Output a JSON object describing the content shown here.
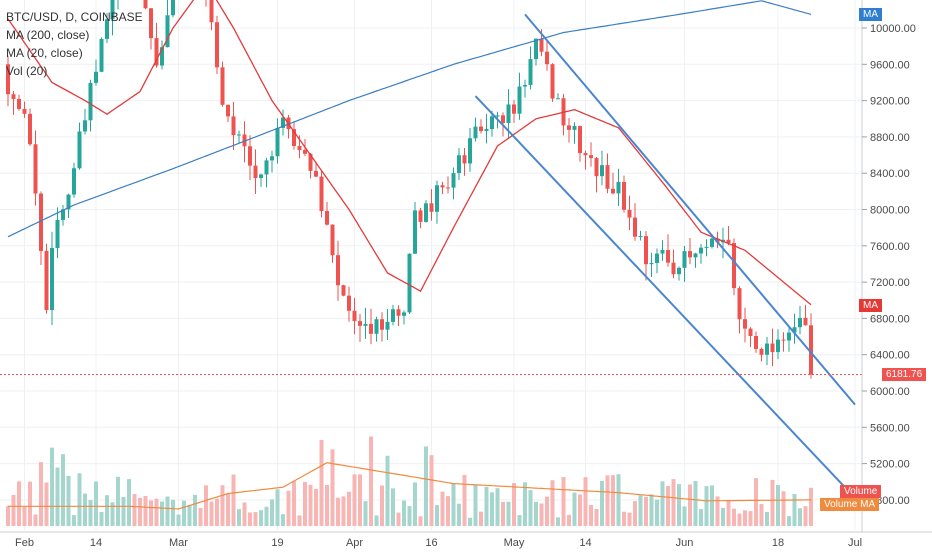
{
  "legend": {
    "symbol": "BTC/USD, D, COINBASE",
    "ma200": "MA (200, close)",
    "ma20": "MA (20, close)",
    "vol": "Vol (20)"
  },
  "tags": {
    "ma_top": "MA",
    "ma_mid": "MA",
    "last_price": "6181.76",
    "volume": "Volume",
    "volume_ma": "Volume MA"
  },
  "colors": {
    "up": "#26a69a",
    "down": "#ef5350",
    "vol_up": "#a5d6ce",
    "vol_down": "#f7b5b3",
    "ma20": "#e33b3b",
    "ma200": "#3a7fc4",
    "vol_ma": "#f08a3e",
    "channel": "#4a86d0",
    "ma_tag_blue": "#2f7fd0",
    "ma_tag_red": "#e53935",
    "price_tag": "#ef5350",
    "volume_ma_tag": "#f08a3e"
  },
  "chart_data": {
    "type": "candlestick",
    "symbol": "BTC/USD",
    "timeframe": "D",
    "exchange": "COINBASE",
    "x_ticks": [
      "Feb",
      "14",
      "Mar",
      "19",
      "Apr",
      "16",
      "May",
      "14",
      "Jun",
      "18",
      "Jul"
    ],
    "y_ticks": [
      10000,
      9600,
      9200,
      8800,
      8400,
      8000,
      7600,
      7200,
      6800,
      6400,
      6000,
      5600,
      5200,
      4800
    ],
    "y_range": [
      4600,
      10300
    ],
    "last_price": 6181.76,
    "close_path": [
      [
        "2018-01-29",
        9400
      ],
      [
        "2018-02-02",
        8800
      ],
      [
        "2018-02-05",
        6900
      ],
      [
        "2018-02-06",
        7700
      ],
      [
        "2018-02-09",
        8200
      ],
      [
        "2018-02-15",
        9800
      ],
      [
        "2018-02-20",
        11100
      ],
      [
        "2018-02-25",
        9600
      ],
      [
        "2018-03-04",
        11300
      ],
      [
        "2018-03-09",
        9200
      ],
      [
        "2018-03-15",
        8300
      ],
      [
        "2018-03-20",
        8900
      ],
      [
        "2018-03-25",
        8500
      ],
      [
        "2018-03-31",
        6950
      ],
      [
        "2018-04-06",
        6700
      ],
      [
        "2018-04-11",
        6900
      ],
      [
        "2018-04-13",
        7900
      ],
      [
        "2018-04-18",
        8200
      ],
      [
        "2018-04-25",
        8900
      ],
      [
        "2018-05-01",
        9100
      ],
      [
        "2018-05-05",
        9800
      ],
      [
        "2018-05-10",
        9000
      ],
      [
        "2018-05-15",
        8500
      ],
      [
        "2018-05-20",
        8200
      ],
      [
        "2018-05-25",
        7500
      ],
      [
        "2018-05-31",
        7400
      ],
      [
        "2018-06-05",
        7550
      ],
      [
        "2018-06-09",
        7600
      ],
      [
        "2018-06-11",
        6750
      ],
      [
        "2018-06-16",
        6450
      ],
      [
        "2018-06-20",
        6700
      ],
      [
        "2018-06-23",
        6700
      ],
      [
        "2018-06-24",
        6181.76
      ]
    ],
    "ma20_path": [
      [
        "2018-01-29",
        10100
      ],
      [
        "2018-02-06",
        9400
      ],
      [
        "2018-02-12",
        9200
      ],
      [
        "2018-02-16",
        9050
      ],
      [
        "2018-02-22",
        9300
      ],
      [
        "2018-02-28",
        10000
      ],
      [
        "2018-03-06",
        10500
      ],
      [
        "2018-03-11",
        10000
      ],
      [
        "2018-03-18",
        9200
      ],
      [
        "2018-03-25",
        8600
      ],
      [
        "2018-04-01",
        8000
      ],
      [
        "2018-04-08",
        7300
      ],
      [
        "2018-04-14",
        7100
      ],
      [
        "2018-04-20",
        7800
      ],
      [
        "2018-04-28",
        8700
      ],
      [
        "2018-05-05",
        9000
      ],
      [
        "2018-05-12",
        9100
      ],
      [
        "2018-05-20",
        8900
      ],
      [
        "2018-05-28",
        8300
      ],
      [
        "2018-06-04",
        7750
      ],
      [
        "2018-06-12",
        7550
      ],
      [
        "2018-06-18",
        7250
      ],
      [
        "2018-06-24",
        6950
      ]
    ],
    "ma200_path": [
      [
        "2018-01-29",
        7700
      ],
      [
        "2018-02-10",
        8050
      ],
      [
        "2018-02-28",
        8450
      ],
      [
        "2018-03-15",
        8800
      ],
      [
        "2018-04-01",
        9200
      ],
      [
        "2018-04-20",
        9600
      ],
      [
        "2018-05-10",
        9950
      ],
      [
        "2018-05-31",
        10150
      ],
      [
        "2018-06-15",
        10300
      ],
      [
        "2018-06-24",
        10150
      ]
    ],
    "channel_upper": [
      [
        "2018-05-03",
        10150
      ],
      [
        "2018-07-02",
        5850
      ]
    ],
    "channel_lower": [
      [
        "2018-04-24",
        9250
      ],
      [
        "2018-06-30",
        4950
      ]
    ],
    "volume_ma_path": [
      [
        "2018-01-29",
        4730
      ],
      [
        "2018-02-20",
        4730
      ],
      [
        "2018-03-01",
        4700
      ],
      [
        "2018-03-10",
        4870
      ],
      [
        "2018-03-20",
        4940
      ],
      [
        "2018-03-28",
        5210
      ],
      [
        "2018-04-08",
        5100
      ],
      [
        "2018-04-20",
        4980
      ],
      [
        "2018-05-05",
        4930
      ],
      [
        "2018-05-20",
        4880
      ],
      [
        "2018-06-05",
        4790
      ],
      [
        "2018-06-24",
        4800
      ]
    ]
  }
}
